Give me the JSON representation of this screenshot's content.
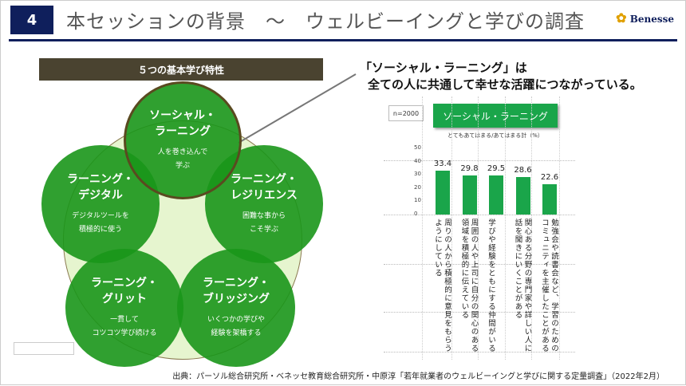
{
  "header": {
    "number": "4",
    "title": "本セッションの背景　～　ウェルビーイングと学びの調査",
    "logo": "Benesse"
  },
  "diagram": {
    "band": "５つの基本学び特性",
    "circles": [
      {
        "title1": "ソーシャル・",
        "title2": "ラーニング",
        "desc1": "人を巻き込んで",
        "desc2": "学ぶ"
      },
      {
        "title1": "ラーニング・",
        "title2": "デジタル",
        "desc1": "デジタルツールを",
        "desc2": "積極的に使う"
      },
      {
        "title1": "ラーニング・",
        "title2": "レジリエンス",
        "desc1": "困難な事から",
        "desc2": "こそ学ぶ"
      },
      {
        "title1": "ラーニング・",
        "title2": "グリット",
        "desc1": "一貫して",
        "desc2": "コツコツ学び続ける"
      },
      {
        "title1": "ラーニング・",
        "title2": "ブリッジング",
        "desc1": "いくつかの学びや",
        "desc2": "経験を架橋する"
      }
    ]
  },
  "callout": {
    "line1": "「ソーシャル・ラーニング」は",
    "line2": "全ての人に共通して幸せな活躍につながっている。"
  },
  "chart_data": {
    "type": "bar",
    "title": "ソーシャル・ラーニング",
    "sample": "n=2000",
    "ylabel": "とてもあてはまる/あてはまる計（%）",
    "ylim": [
      0,
      50
    ],
    "ticks": [
      "0",
      "10",
      "20",
      "30",
      "40",
      "50"
    ],
    "categories": [
      "周りの人から積極的に意見をもらうようにしている",
      "周囲の人や上司に自分の関心のある領域を積極的に伝えている",
      "学びや経験をともにする仲間がいる",
      "関心ある分野の専門家や詳しい人に話を聞きにいくことがある",
      "勉強会や読書会など、学習のためのコミュニティを主催したことがある"
    ],
    "values": [
      33.4,
      29.8,
      29.5,
      28.6,
      22.6
    ],
    "value_labels": [
      "33.4",
      "29.8",
      "29.5",
      "28.6",
      "22.6"
    ]
  },
  "source": "出典：パーソル総合研究所・ベネッセ教育総合研究所・中原淳「若年就業者のウェルビーイングと学びに関する定量調査」（2022年2月）",
  "colors": {
    "navy": "#0f1f5c",
    "green": "#1aa54a",
    "circle": "#1a961a"
  }
}
